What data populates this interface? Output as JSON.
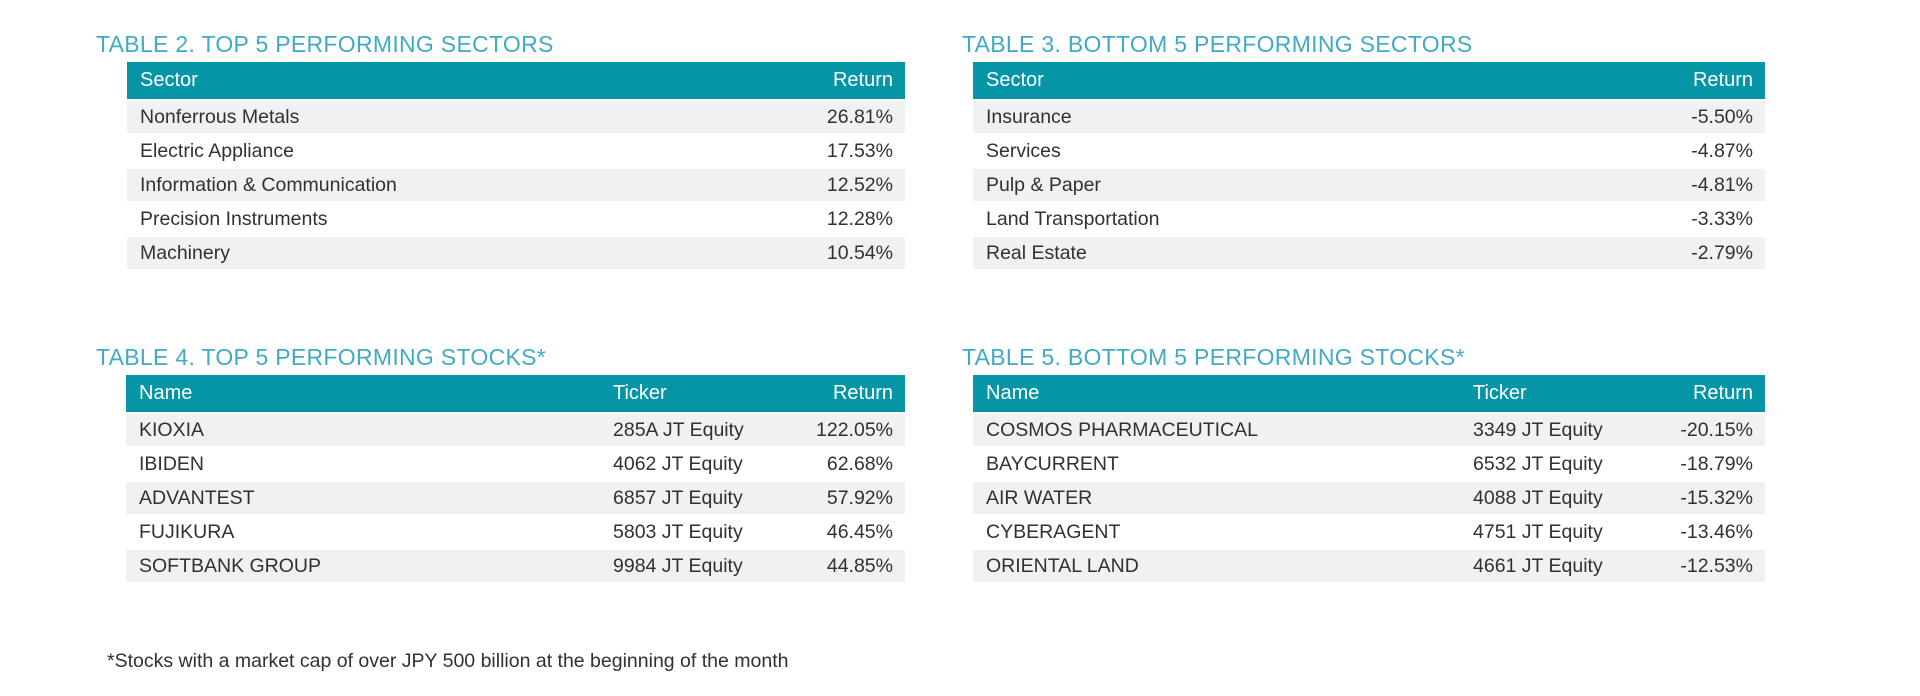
{
  "page": {
    "accent_title_color": "#41aac4",
    "header_bg_color": "#0695a7",
    "row_alt_color": "#f1f1f1",
    "text_color": "#303038",
    "footnote": "*Stocks with a market cap of over JPY 500 billion at the beginning of the month"
  },
  "tables": {
    "top_sectors": {
      "title": "TABLE 2. TOP 5 PERFORMING SECTORS",
      "col_sector": "Sector",
      "col_return": "Return",
      "rows": [
        {
          "sector": "Nonferrous Metals",
          "return": "26.81%"
        },
        {
          "sector": "Electric Appliance",
          "return": "17.53%"
        },
        {
          "sector": "Information & Communication",
          "return": "12.52%"
        },
        {
          "sector": "Precision Instruments",
          "return": "12.28%"
        },
        {
          "sector": "Machinery",
          "return": "10.54%"
        }
      ]
    },
    "bottom_sectors": {
      "title": "TABLE 3. BOTTOM 5 PERFORMING SECTORS",
      "col_sector": "Sector",
      "col_return": "Return",
      "rows": [
        {
          "sector": "Insurance",
          "return": "-5.50%"
        },
        {
          "sector": "Services",
          "return": "-4.87%"
        },
        {
          "sector": "Pulp & Paper",
          "return": "-4.81%"
        },
        {
          "sector": "Land Transportation",
          "return": "-3.33%"
        },
        {
          "sector": "Real Estate",
          "return": "-2.79%"
        }
      ]
    },
    "top_stocks": {
      "title": "TABLE 4. TOP 5 PERFORMING STOCKS*",
      "col_name": "Name",
      "col_ticker": "Ticker",
      "col_return": "Return",
      "rows": [
        {
          "name": "KIOXIA",
          "ticker": "285A JT Equity",
          "return": "122.05%"
        },
        {
          "name": "IBIDEN",
          "ticker": "4062 JT Equity",
          "return": "62.68%"
        },
        {
          "name": "ADVANTEST",
          "ticker": "6857 JT Equity",
          "return": "57.92%"
        },
        {
          "name": "FUJIKURA",
          "ticker": "5803 JT Equity",
          "return": "46.45%"
        },
        {
          "name": "SOFTBANK GROUP",
          "ticker": "9984 JT Equity",
          "return": "44.85%"
        }
      ]
    },
    "bottom_stocks": {
      "title": "TABLE 5. BOTTOM 5 PERFORMING STOCKS*",
      "col_name": "Name",
      "col_ticker": "Ticker",
      "col_return": "Return",
      "rows": [
        {
          "name": "COSMOS PHARMACEUTICAL",
          "ticker": "3349 JT Equity",
          "return": "-20.15%"
        },
        {
          "name": "BAYCURRENT",
          "ticker": "6532 JT Equity",
          "return": "-18.79%"
        },
        {
          "name": "AIR WATER",
          "ticker": "4088 JT Equity",
          "return": "-15.32%"
        },
        {
          "name": "CYBERAGENT",
          "ticker": "4751 JT Equity",
          "return": "-13.46%"
        },
        {
          "name": "ORIENTAL LAND",
          "ticker": "4661 JT Equity",
          "return": "-12.53%"
        }
      ]
    }
  }
}
